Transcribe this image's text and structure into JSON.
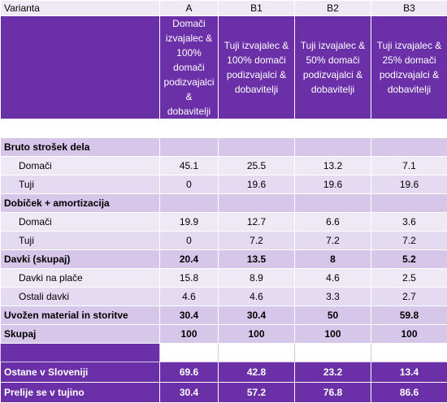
{
  "header": {
    "label": "Varianta",
    "columns": [
      "A",
      "B1",
      "B2",
      "B3"
    ]
  },
  "descriptions": [
    "Domači izvajalec & 100% domači podizvajalci & dobavitelji",
    "Tuji izvajalec & 100% domači podizvajalci & dobavitelji",
    "Tuji izvajalec & 50% domači podizvajalci & dobavitelji",
    "Tuji izvajalec & 25% domači podizvajalci & dobavitelji"
  ],
  "rows": [
    {
      "label": "Bruto strošek dela",
      "type": "section",
      "values": [
        "",
        "",
        "",
        ""
      ]
    },
    {
      "label": "Domači",
      "type": "sub-a",
      "values": [
        "45.1",
        "25.5",
        "13.2",
        "7.1"
      ]
    },
    {
      "label": "Tuji",
      "type": "sub-b",
      "values": [
        "0",
        "19.6",
        "19.6",
        "19.6"
      ]
    },
    {
      "label": "Dobiček + amortizacija",
      "type": "section",
      "values": [
        "",
        "",
        "",
        ""
      ]
    },
    {
      "label": "Domači",
      "type": "sub-a",
      "values": [
        "19.9",
        "12.7",
        "6.6",
        "3.6"
      ]
    },
    {
      "label": "Tuji",
      "type": "sub-b",
      "values": [
        "0",
        "7.2",
        "7.2",
        "7.2"
      ]
    },
    {
      "label": "Davki (skupaj)",
      "type": "section",
      "values": [
        "20.4",
        "13.5",
        "8",
        "5.2"
      ]
    },
    {
      "label": "Davki na plače",
      "type": "sub-a",
      "values": [
        "15.8",
        "8.9",
        "4.6",
        "2.5"
      ]
    },
    {
      "label": "Ostali davki",
      "type": "sub-b",
      "values": [
        "4.6",
        "4.6",
        "3.3",
        "2.7"
      ]
    },
    {
      "label": "Uvožen material in storitve",
      "type": "section",
      "values": [
        "30.4",
        "30.4",
        "50",
        "59.8"
      ]
    },
    {
      "label": "Skupaj",
      "type": "section-bold",
      "values": [
        "100",
        "100",
        "100",
        "100"
      ]
    }
  ],
  "final": [
    {
      "label": "Ostane v Sloveniji",
      "values": [
        "69.6",
        "42.8",
        "23.2",
        "13.4"
      ]
    },
    {
      "label": "Prelije se v tujino",
      "values": [
        "30.4",
        "57.2",
        "76.8",
        "86.6"
      ]
    }
  ]
}
